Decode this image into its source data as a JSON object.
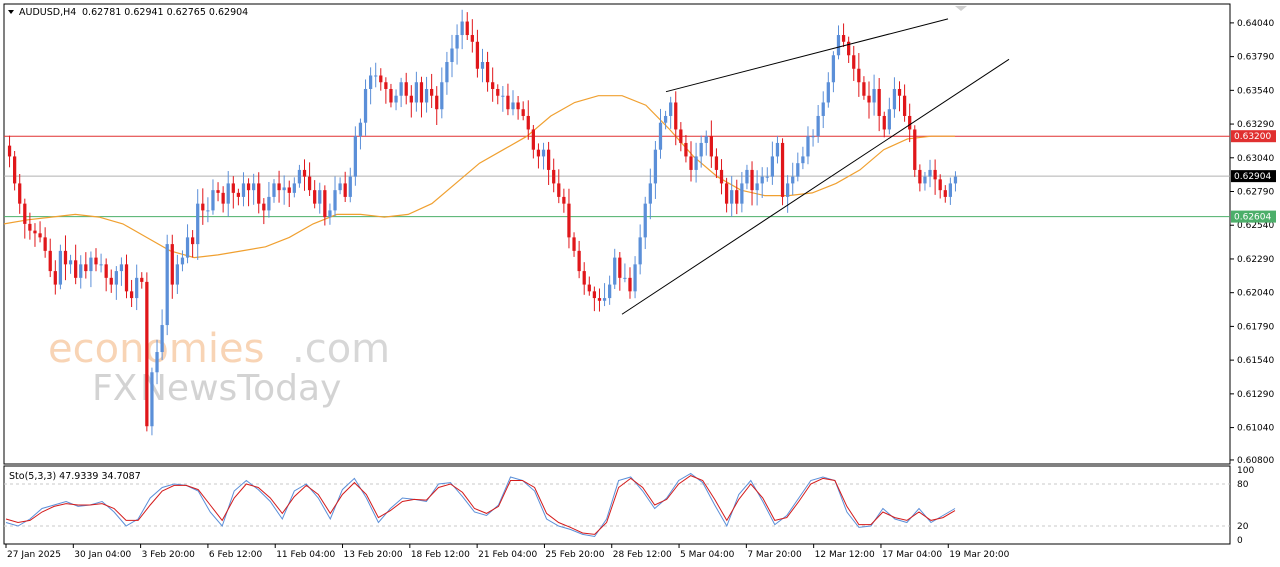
{
  "header": {
    "symbol": "AUDUSD,H4",
    "ohlc": "0.62781 0.62941 0.62765 0.62904"
  },
  "watermark": {
    "brand_colored": "economies",
    "brand_suffix": ".com",
    "brand2_prefix": "FX",
    "brand2_rest": "NewsToday"
  },
  "stoch": {
    "label": "Sto(5,3,3) 47.9339 34.7087",
    "levels": [
      80,
      20
    ],
    "axis_labels": [
      "100",
      "80",
      "20",
      "0"
    ]
  },
  "colors": {
    "bull": "#5b8fd8",
    "bear": "#e0161a",
    "ma": "#f0a030",
    "res_line": "#e03030",
    "sup_line": "#4caf6a",
    "price_line": "#b0b0b0",
    "stoch_main": "#5b8fd8",
    "stoch_signal": "#d41b1b",
    "label_price": "#000000"
  },
  "chart_data": {
    "type": "candlestick",
    "timeframe": "H4",
    "y_ticks": [
      0.6404,
      0.6379,
      0.6354,
      0.6329,
      0.6304,
      0.6279,
      0.6254,
      0.6229,
      0.6204,
      0.6179,
      0.6154,
      0.6129,
      0.6104,
      0.608
    ],
    "ylim": [
      0.6077,
      0.6418
    ],
    "x_labels": [
      "27 Jan 2025",
      "30 Jan 04:00",
      "3 Feb 20:00",
      "6 Feb 12:00",
      "11 Feb 04:00",
      "13 Feb 20:00",
      "18 Feb 12:00",
      "21 Feb 04:00",
      "25 Feb 20:00",
      "28 Feb 12:00",
      "5 Mar 04:00",
      "7 Mar 20:00",
      "12 Mar 12:00",
      "17 Mar 04:00",
      "19 Mar 20:00"
    ],
    "horizontal_lines": [
      {
        "value": 0.632,
        "label": "0.63200",
        "role": "resistance"
      },
      {
        "value": 0.62904,
        "label": "0.62904",
        "role": "current"
      },
      {
        "value": 0.62604,
        "label": "0.62604",
        "role": "support"
      }
    ],
    "close_path": [
      0.6305,
      0.6285,
      0.627,
      0.6255,
      0.625,
      0.6248,
      0.6245,
      0.6235,
      0.622,
      0.621,
      0.6235,
      0.6225,
      0.6228,
      0.6215,
      0.6225,
      0.622,
      0.623,
      0.6225,
      0.6225,
      0.6215,
      0.621,
      0.622,
      0.6225,
      0.6205,
      0.62,
      0.6215,
      0.6212,
      0.6105,
      0.6145,
      0.616,
      0.618,
      0.624,
      0.621,
      0.6225,
      0.623,
      0.6245,
      0.624,
      0.627,
      0.6265,
      0.6265,
      0.628,
      0.6278,
      0.627,
      0.6285,
      0.6278,
      0.6275,
      0.6285,
      0.628,
      0.6285,
      0.627,
      0.6265,
      0.6275,
      0.6285,
      0.628,
      0.6282,
      0.6278,
      0.6285,
      0.6295,
      0.629,
      0.628,
      0.627,
      0.628,
      0.626,
      0.6265,
      0.628,
      0.6285,
      0.6275,
      0.629,
      0.632,
      0.633,
      0.6355,
      0.6365,
      0.6365,
      0.636,
      0.6355,
      0.6345,
      0.635,
      0.636,
      0.635,
      0.6345,
      0.636,
      0.6345,
      0.6355,
      0.635,
      0.634,
      0.636,
      0.6375,
      0.6385,
      0.6395,
      0.6405,
      0.6395,
      0.639,
      0.637,
      0.6375,
      0.636,
      0.6355,
      0.635,
      0.635,
      0.634,
      0.6345,
      0.634,
      0.6335,
      0.6325,
      0.631,
      0.6305,
      0.631,
      0.6295,
      0.6285,
      0.6275,
      0.627,
      0.6245,
      0.6235,
      0.622,
      0.621,
      0.6205,
      0.62,
      0.6198,
      0.62,
      0.621,
      0.623,
      0.6215,
      0.6215,
      0.6205,
      0.6225,
      0.6245,
      0.627,
      0.6285,
      0.631,
      0.633,
      0.6335,
      0.6345,
      0.6325,
      0.6315,
      0.6305,
      0.6295,
      0.6305,
      0.6315,
      0.632,
      0.6305,
      0.6295,
      0.6285,
      0.627,
      0.628,
      0.627,
      0.6285,
      0.6295,
      0.628,
      0.6285,
      0.629,
      0.629,
      0.6305,
      0.6315,
      0.6275,
      0.6285,
      0.629,
      0.63,
      0.6305,
      0.632,
      0.632,
      0.6335,
      0.6345,
      0.636,
      0.638,
      0.6395,
      0.639,
      0.638,
      0.637,
      0.636,
      0.635,
      0.6345,
      0.6355,
      0.6335,
      0.6325,
      0.634,
      0.6355,
      0.635,
      0.6335,
      0.6325,
      0.6295,
      0.6285,
      0.629,
      0.6295,
      0.6288,
      0.628,
      0.6275,
      0.6285,
      0.629
    ],
    "highs_lows_note": "",
    "moving_average": [
      0.6255,
      0.6258,
      0.626,
      0.6262,
      0.626,
      0.6255,
      0.6245,
      0.6235,
      0.623,
      0.6232,
      0.6235,
      0.6238,
      0.6245,
      0.6255,
      0.6262,
      0.6262,
      0.626,
      0.6262,
      0.627,
      0.6285,
      0.63,
      0.631,
      0.632,
      0.6335,
      0.6345,
      0.635,
      0.635,
      0.6343,
      0.6325,
      0.6305,
      0.629,
      0.628,
      0.6276,
      0.6276,
      0.6278,
      0.6285,
      0.6295,
      0.631,
      0.6318,
      0.632,
      0.632
    ],
    "trendlines": [
      {
        "from": [
          0.6188,
          0.5
        ],
        "to": [
          0.6377,
          0.85
        ],
        "note": "rising support"
      },
      {
        "from": [
          0.6353,
          0.5
        ],
        "to": [
          0.6407,
          0.75
        ],
        "note": "rising resistance"
      }
    ],
    "stochastic": {
      "k": [
        25,
        20,
        30,
        45,
        50,
        55,
        48,
        50,
        55,
        40,
        20,
        30,
        60,
        75,
        80,
        78,
        70,
        40,
        20,
        70,
        85,
        72,
        55,
        30,
        70,
        80,
        60,
        30,
        72,
        88,
        60,
        25,
        45,
        60,
        58,
        55,
        80,
        82,
        62,
        40,
        35,
        50,
        90,
        85,
        70,
        30,
        20,
        15,
        8,
        5,
        30,
        85,
        90,
        70,
        45,
        60,
        85,
        95,
        82,
        50,
        20,
        65,
        85,
        55,
        22,
        35,
        60,
        85,
        90,
        85,
        40,
        18,
        20,
        45,
        30,
        25,
        45,
        25,
        35,
        45
      ],
      "d": [
        30,
        25,
        28,
        40,
        48,
        52,
        50,
        50,
        52,
        45,
        28,
        28,
        50,
        70,
        78,
        78,
        72,
        50,
        28,
        60,
        80,
        75,
        60,
        38,
        62,
        78,
        65,
        38,
        65,
        82,
        65,
        32,
        42,
        55,
        58,
        57,
        75,
        80,
        68,
        45,
        38,
        48,
        85,
        85,
        75,
        38,
        25,
        18,
        10,
        8,
        25,
        75,
        88,
        75,
        50,
        58,
        80,
        92,
        85,
        58,
        28,
        58,
        80,
        60,
        28,
        32,
        55,
        80,
        88,
        85,
        48,
        22,
        22,
        40,
        32,
        28,
        40,
        28,
        32,
        42
      ]
    }
  }
}
